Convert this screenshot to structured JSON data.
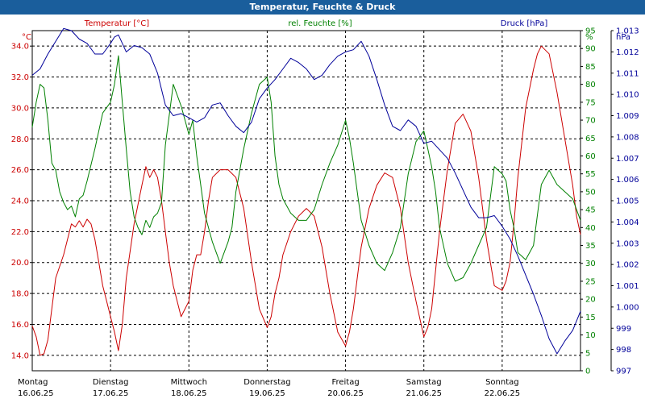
{
  "window": {
    "title": "Temperatur, Feuchte & Druck"
  },
  "chart_data": {
    "type": "line",
    "title": "Temperatur, Feuchte & Druck",
    "grid": true,
    "x_range_days": [
      "16.06.25",
      "23.06.25"
    ],
    "x_labels": [
      {
        "day": "Montag",
        "date": "16.06.25"
      },
      {
        "day": "Dienstag",
        "date": "17.06.25"
      },
      {
        "day": "Mittwoch",
        "date": "18.06.25"
      },
      {
        "day": "Donnerstag",
        "date": "19.06.25"
      },
      {
        "day": "Freitag",
        "date": "20.06.25"
      },
      {
        "day": "Samstag",
        "date": "21.06.25"
      },
      {
        "day": "Sonntag",
        "date": "22.06.25"
      }
    ],
    "axes": {
      "left": {
        "unit": "°C",
        "min": 13,
        "max": 35,
        "ticks": [
          "14.0",
          "16.0",
          "18.0",
          "20.0",
          "22.0",
          "24.0",
          "26.0",
          "28.0",
          "30.0",
          "32.0",
          "34.0"
        ],
        "color": "#cc0000"
      },
      "middle": {
        "unit": "%",
        "min": 0,
        "max": 95,
        "ticks": [
          "0",
          "5",
          "10",
          "15",
          "20",
          "25",
          "30",
          "35",
          "40",
          "45",
          "50",
          "55",
          "60",
          "65",
          "70",
          "75",
          "80",
          "85",
          "90",
          "95"
        ],
        "color": "#008000"
      },
      "right": {
        "unit": "hPa",
        "min": 997,
        "max": 1013,
        "ticks": [
          "997",
          "998",
          "999",
          "1.000",
          "1.001",
          "1.002",
          "1.003",
          "1.004",
          "1.005",
          "1.006",
          "1.007",
          "1.008",
          "1.009",
          "1.010",
          "1.011",
          "1.012",
          "1.013"
        ],
        "color": "#000099"
      }
    },
    "series": [
      {
        "name": "Temperatur [°C]",
        "axis": "left",
        "color": "#cc0000",
        "x": [
          0.0,
          0.05,
          0.1,
          0.15,
          0.2,
          0.3,
          0.4,
          0.5,
          0.55,
          0.6,
          0.65,
          0.7,
          0.75,
          0.8,
          0.85,
          0.9,
          0.95,
          1.0,
          1.05,
          1.1,
          1.15,
          1.2,
          1.3,
          1.4,
          1.45,
          1.5,
          1.55,
          1.6,
          1.65,
          1.7,
          1.75,
          1.8,
          1.9,
          2.0,
          2.05,
          2.1,
          2.15,
          2.2,
          2.25,
          2.3,
          2.4,
          2.5,
          2.6,
          2.7,
          2.8,
          2.9,
          3.0,
          3.05,
          3.1,
          3.15,
          3.2,
          3.3,
          3.4,
          3.5,
          3.6,
          3.7,
          3.8,
          3.9,
          4.0,
          4.05,
          4.1,
          4.15,
          4.2,
          4.3,
          4.4,
          4.5,
          4.6,
          4.7,
          4.8,
          4.9,
          5.0,
          5.05,
          5.1,
          5.15,
          5.2,
          5.3,
          5.4,
          5.5,
          5.6,
          5.7,
          5.8,
          5.9,
          6.0,
          6.05,
          6.1,
          6.15,
          6.2,
          6.3,
          6.4,
          6.45,
          6.5,
          6.6,
          6.7,
          6.8,
          6.9,
          6.95,
          7.0
        ],
        "values": [
          15.9,
          15.2,
          14.0,
          14.1,
          15.0,
          19.0,
          20.5,
          22.5,
          22.3,
          22.7,
          22.3,
          22.8,
          22.5,
          21.5,
          20.0,
          18.5,
          17.5,
          16.5,
          15.5,
          14.3,
          16.0,
          19.0,
          22.5,
          25.0,
          26.2,
          25.5,
          26.0,
          25.5,
          24.0,
          22.0,
          20.0,
          18.5,
          16.5,
          17.5,
          19.5,
          20.5,
          20.5,
          22.0,
          24.0,
          25.5,
          26.0,
          26.0,
          25.5,
          23.5,
          20.0,
          17.0,
          15.8,
          16.5,
          18.0,
          19.0,
          20.5,
          22.0,
          23.0,
          23.5,
          23.0,
          21.0,
          18.0,
          15.5,
          14.6,
          15.5,
          17.0,
          19.0,
          21.0,
          23.5,
          25.0,
          25.8,
          25.5,
          23.5,
          20.0,
          17.5,
          15.2,
          15.8,
          17.0,
          19.5,
          22.0,
          26.0,
          29.0,
          29.6,
          28.5,
          25.5,
          21.5,
          18.5,
          18.2,
          18.8,
          20.0,
          22.5,
          25.5,
          30.0,
          32.5,
          33.5,
          34.0,
          33.5,
          31.0,
          28.0,
          25.0,
          23.0,
          21.8
        ]
      },
      {
        "name": "rel. Feuchte [%]",
        "axis": "middle",
        "color": "#008000",
        "x": [
          0.0,
          0.05,
          0.1,
          0.15,
          0.2,
          0.25,
          0.3,
          0.35,
          0.4,
          0.45,
          0.5,
          0.55,
          0.6,
          0.65,
          0.7,
          0.8,
          0.9,
          1.0,
          1.05,
          1.1,
          1.15,
          1.2,
          1.25,
          1.3,
          1.35,
          1.4,
          1.45,
          1.5,
          1.55,
          1.6,
          1.65,
          1.7,
          1.8,
          1.9,
          2.0,
          2.05,
          2.1,
          2.15,
          2.2,
          2.3,
          2.4,
          2.5,
          2.55,
          2.6,
          2.7,
          2.8,
          2.9,
          3.0,
          3.05,
          3.1,
          3.15,
          3.2,
          3.3,
          3.4,
          3.5,
          3.6,
          3.7,
          3.8,
          3.9,
          4.0,
          4.05,
          4.1,
          4.15,
          4.2,
          4.3,
          4.4,
          4.5,
          4.6,
          4.7,
          4.8,
          4.9,
          5.0,
          5.05,
          5.1,
          5.15,
          5.2,
          5.3,
          5.4,
          5.5,
          5.6,
          5.7,
          5.8,
          5.9,
          6.0,
          6.05,
          6.1,
          6.15,
          6.2,
          6.3,
          6.4,
          6.5,
          6.6,
          6.7,
          6.8,
          6.9,
          6.95,
          7.0
        ],
        "values": [
          68,
          75,
          80,
          79,
          70,
          58,
          56,
          50,
          47,
          45,
          46,
          43,
          48,
          49,
          53,
          62,
          72,
          75,
          80,
          88,
          75,
          62,
          50,
          43,
          40,
          38,
          42,
          40,
          43,
          44,
          47,
          63,
          80,
          74,
          66,
          70,
          60,
          52,
          44,
          36,
          30,
          36,
          40,
          50,
          62,
          72,
          80,
          82,
          75,
          60,
          52,
          48,
          44,
          42,
          42,
          45,
          52,
          58,
          63,
          70,
          65,
          58,
          50,
          42,
          35,
          30,
          28,
          33,
          40,
          55,
          64,
          67,
          62,
          57,
          50,
          40,
          30,
          25,
          26,
          30,
          35,
          40,
          57,
          55,
          53,
          45,
          40,
          33,
          31,
          35,
          52,
          56,
          52,
          50,
          48,
          45,
          42
        ]
      },
      {
        "name": "Druck [hPa]",
        "axis": "right",
        "color": "#000099",
        "x": [
          0.0,
          0.1,
          0.2,
          0.3,
          0.4,
          0.5,
          0.6,
          0.7,
          0.8,
          0.9,
          1.0,
          1.05,
          1.1,
          1.2,
          1.3,
          1.4,
          1.5,
          1.6,
          1.7,
          1.8,
          1.9,
          2.0,
          2.1,
          2.2,
          2.3,
          2.4,
          2.5,
          2.6,
          2.7,
          2.8,
          2.9,
          3.0,
          3.1,
          3.2,
          3.3,
          3.4,
          3.5,
          3.6,
          3.7,
          3.8,
          3.9,
          4.0,
          4.1,
          4.2,
          4.3,
          4.4,
          4.5,
          4.6,
          4.7,
          4.8,
          4.9,
          5.0,
          5.1,
          5.2,
          5.3,
          5.4,
          5.5,
          5.6,
          5.7,
          5.8,
          5.9,
          6.0,
          6.1,
          6.2,
          6.3,
          6.4,
          6.5,
          6.6,
          6.7,
          6.8,
          6.9,
          7.0
        ],
        "values": [
          1010.9,
          1011.2,
          1011.9,
          1012.5,
          1013.1,
          1013.0,
          1012.6,
          1012.4,
          1011.9,
          1011.9,
          1012.4,
          1012.7,
          1012.8,
          1012.0,
          1012.3,
          1012.2,
          1011.9,
          1011.0,
          1009.5,
          1009.0,
          1009.1,
          1008.9,
          1008.7,
          1008.9,
          1009.5,
          1009.6,
          1009.0,
          1008.5,
          1008.2,
          1008.7,
          1009.8,
          1010.3,
          1010.7,
          1011.2,
          1011.7,
          1011.5,
          1011.2,
          1010.7,
          1010.9,
          1011.4,
          1011.8,
          1012.0,
          1012.1,
          1012.5,
          1011.8,
          1010.7,
          1009.5,
          1008.5,
          1008.3,
          1008.8,
          1008.5,
          1007.7,
          1007.8,
          1007.4,
          1007.0,
          1006.3,
          1005.5,
          1004.7,
          1004.2,
          1004.2,
          1004.3,
          1003.8,
          1003.2,
          1002.4,
          1001.5,
          1000.6,
          999.6,
          998.5,
          997.8,
          998.4,
          998.9,
          999.8
        ]
      }
    ]
  }
}
